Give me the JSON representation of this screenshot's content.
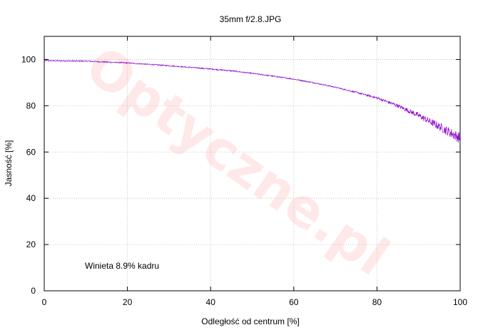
{
  "chart_data": {
    "type": "line",
    "title": "35mm f/2.8.JPG",
    "xlabel": "Odległość od centrum [%]",
    "ylabel": "Jasność [%]",
    "xlim": [
      0,
      100
    ],
    "ylim": [
      0,
      110
    ],
    "xticks": [
      0,
      20,
      40,
      60,
      80,
      100
    ],
    "yticks": [
      0,
      20,
      40,
      60,
      80,
      100
    ],
    "grid": true,
    "annotation": "Winieta 8.9% kadru",
    "watermark": "Optyczne.pl",
    "series": [
      {
        "color": "#8800cc",
        "x": [
          0,
          5,
          10,
          15,
          20,
          25,
          30,
          35,
          40,
          45,
          50,
          55,
          60,
          65,
          70,
          75,
          80,
          85,
          90,
          95,
          100
        ],
        "y": [
          99.5,
          99.4,
          99.3,
          98.9,
          98.5,
          97.9,
          97.3,
          96.6,
          95.9,
          95.1,
          94.0,
          92.8,
          91.5,
          89.9,
          88.0,
          85.8,
          83.4,
          80.0,
          75.8,
          71.0,
          66.0
        ]
      }
    ]
  }
}
